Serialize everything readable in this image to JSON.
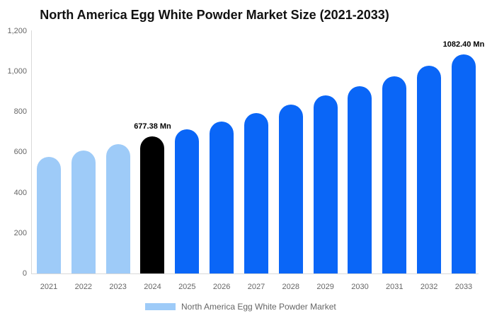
{
  "title": "North America Egg White Powder Market Size (2021-2033)",
  "legend": {
    "label": "North America Egg White Powder Market",
    "swatch_color": "#9ECBF8"
  },
  "colors": {
    "light_blue": "#9ECBF8",
    "accent_blue": "#0A66F7",
    "highlight_black": "#000000",
    "axis_line": "#D9D9D9",
    "tick_text": "#666666",
    "title_text": "#111111"
  },
  "chart_data": {
    "type": "bar",
    "title": "North America Egg White Powder Market Size (2021-2033)",
    "xlabel": "",
    "ylabel": "",
    "unit": "Mn",
    "categories": [
      "2021",
      "2022",
      "2023",
      "2024",
      "2025",
      "2026",
      "2027",
      "2028",
      "2029",
      "2030",
      "2031",
      "2032",
      "2033"
    ],
    "values": [
      577,
      608,
      641,
      677.38,
      713,
      751,
      792,
      834,
      879,
      926,
      976,
      1028,
      1082.4
    ],
    "bar_colors": [
      "#9ECBF8",
      "#9ECBF8",
      "#9ECBF8",
      "#000000",
      "#0A66F7",
      "#0A66F7",
      "#0A66F7",
      "#0A66F7",
      "#0A66F7",
      "#0A66F7",
      "#0A66F7",
      "#0A66F7",
      "#0A66F7"
    ],
    "data_labels": [
      {
        "index": 3,
        "text": "677.38 Mn"
      },
      {
        "index": 12,
        "text": "1082.40 Mn"
      }
    ],
    "ylim": [
      0,
      1200
    ],
    "yticks": [
      {
        "value": 0,
        "label": "0"
      },
      {
        "value": 200,
        "label": "200"
      },
      {
        "value": 400,
        "label": "400"
      },
      {
        "value": 600,
        "label": "600"
      },
      {
        "value": 800,
        "label": "800"
      },
      {
        "value": 1000,
        "label": "1,000"
      },
      {
        "value": 1200,
        "label": "1,200"
      }
    ],
    "grid": false,
    "legend_position": "bottom"
  }
}
